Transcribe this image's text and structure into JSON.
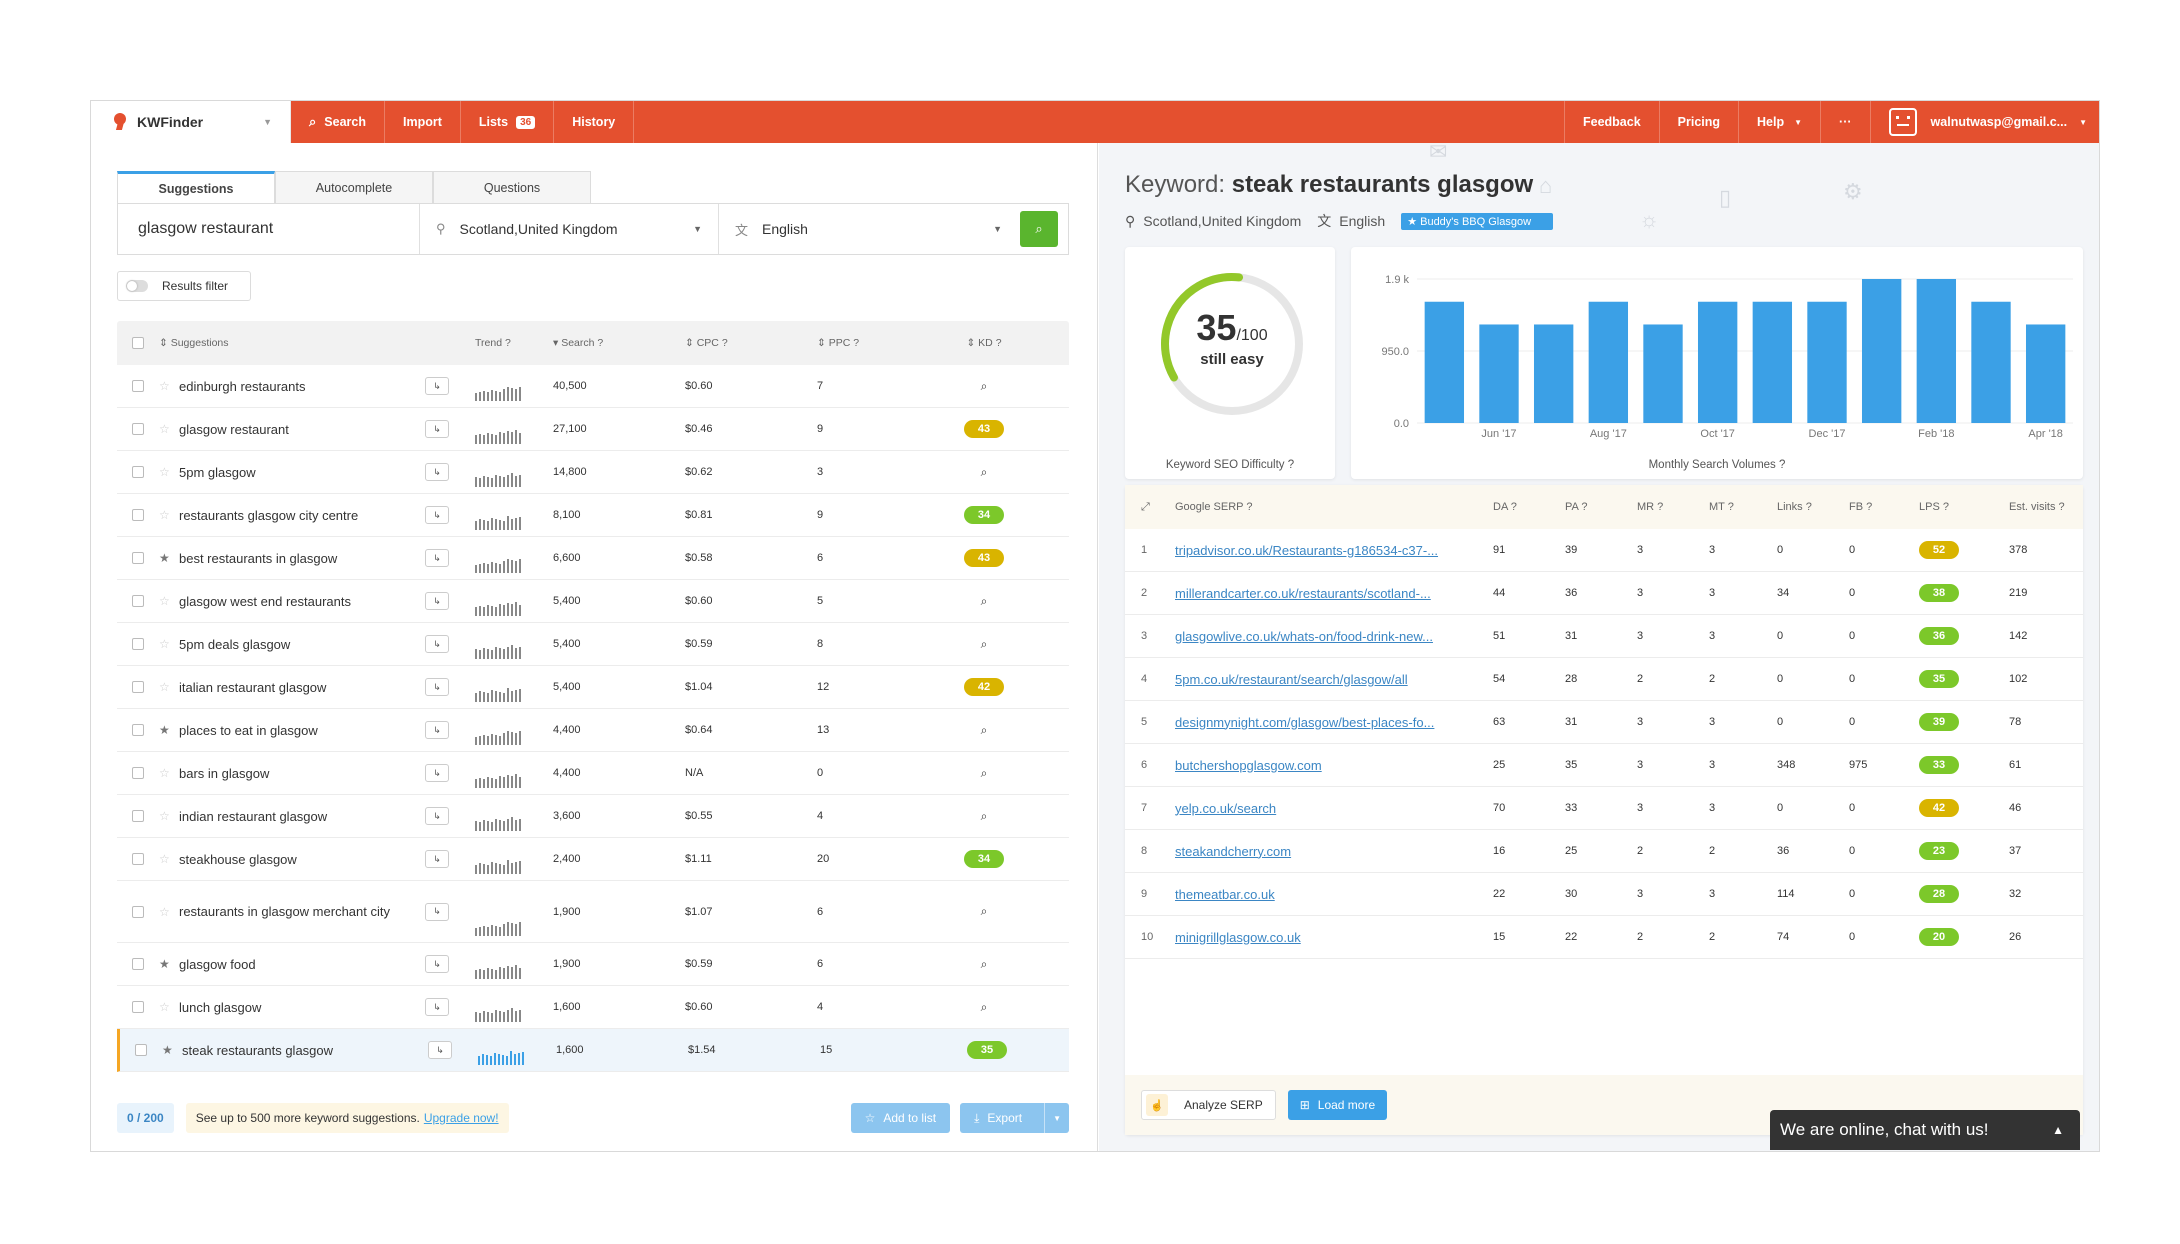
{
  "topbar": {
    "app_name": "KWFinder",
    "nav": [
      {
        "label": "Search",
        "icon": "search-icon"
      },
      {
        "label": "Import"
      },
      {
        "label": "Lists",
        "badge": "36"
      },
      {
        "label": "History"
      }
    ],
    "right_nav": [
      "Feedback",
      "Pricing",
      "Help",
      "···"
    ],
    "user_email": "walnutwasp@gmail.c..."
  },
  "left": {
    "tabs": [
      "Suggestions",
      "Autocomplete",
      "Questions"
    ],
    "search": {
      "query": "glasgow restaurant",
      "location": "Scotland,United Kingdom",
      "language": "English"
    },
    "filter_label": "Results filter",
    "columns": [
      "Suggestions",
      "Trend",
      "Search",
      "CPC",
      "PPC",
      "KD"
    ],
    "rows": [
      {
        "kw": "edinburgh restaurants",
        "star": false,
        "search": "40,500",
        "cpc": "$0.60",
        "ppc": "7",
        "kd": ""
      },
      {
        "kw": "glasgow restaurant",
        "star": false,
        "search": "27,100",
        "cpc": "$0.46",
        "ppc": "9",
        "kd": "43"
      },
      {
        "kw": "5pm glasgow",
        "star": false,
        "search": "14,800",
        "cpc": "$0.62",
        "ppc": "3",
        "kd": ""
      },
      {
        "kw": "restaurants glasgow city centre",
        "star": false,
        "search": "8,100",
        "cpc": "$0.81",
        "ppc": "9",
        "kd": "34"
      },
      {
        "kw": "best restaurants in glasgow",
        "star": true,
        "search": "6,600",
        "cpc": "$0.58",
        "ppc": "6",
        "kd": "43"
      },
      {
        "kw": "glasgow west end restaurants",
        "star": false,
        "search": "5,400",
        "cpc": "$0.60",
        "ppc": "5",
        "kd": ""
      },
      {
        "kw": "5pm deals glasgow",
        "star": false,
        "search": "5,400",
        "cpc": "$0.59",
        "ppc": "8",
        "kd": ""
      },
      {
        "kw": "italian restaurant glasgow",
        "star": false,
        "search": "5,400",
        "cpc": "$1.04",
        "ppc": "12",
        "kd": "42"
      },
      {
        "kw": "places to eat in glasgow",
        "star": true,
        "search": "4,400",
        "cpc": "$0.64",
        "ppc": "13",
        "kd": ""
      },
      {
        "kw": "bars in glasgow",
        "star": false,
        "search": "4,400",
        "cpc": "N/A",
        "ppc": "0",
        "kd": ""
      },
      {
        "kw": "indian restaurant glasgow",
        "star": false,
        "search": "3,600",
        "cpc": "$0.55",
        "ppc": "4",
        "kd": ""
      },
      {
        "kw": "steakhouse glasgow",
        "star": false,
        "search": "2,400",
        "cpc": "$1.11",
        "ppc": "20",
        "kd": "34"
      },
      {
        "kw": "restaurants in glasgow merchant city",
        "star": false,
        "search": "1,900",
        "cpc": "$1.07",
        "ppc": "6",
        "kd": ""
      },
      {
        "kw": "glasgow food",
        "star": true,
        "search": "1,900",
        "cpc": "$0.59",
        "ppc": "6",
        "kd": ""
      },
      {
        "kw": "lunch glasgow",
        "star": false,
        "search": "1,600",
        "cpc": "$0.60",
        "ppc": "4",
        "kd": ""
      },
      {
        "kw": "steak restaurants glasgow",
        "star": true,
        "search": "1,600",
        "cpc": "$1.54",
        "ppc": "15",
        "kd": "35",
        "selected": true
      }
    ],
    "footer": {
      "count": "0 / 200",
      "upgrade_text": "See up to 500 more keyword suggestions.",
      "upgrade_bold": "up to 500 more",
      "upgrade_link": "Upgrade now!",
      "add_to_list": "Add to list",
      "export": "Export"
    }
  },
  "right": {
    "keyword_label": "Keyword:",
    "keyword": "steak restaurants glasgow",
    "location": "Scotland,United Kingdom",
    "language": "English",
    "badge": "Buddy's BBQ Glasgow",
    "difficulty": {
      "score": "35",
      "max": "/100",
      "label": "still easy",
      "caption": "Keyword SEO Difficulty",
      "value": 35
    },
    "volume_caption": "Monthly Search Volumes",
    "serp_columns": [
      "Google SERP",
      "DA",
      "PA",
      "MR",
      "MT",
      "Links",
      "FB",
      "LPS",
      "Est. visits"
    ],
    "serp": [
      {
        "n": "1",
        "url": "tripadvisor.co.uk/Restaurants-g186534-c37-...",
        "da": "91",
        "pa": "39",
        "mr": "3",
        "mt": "3",
        "links": "0",
        "fb": "0",
        "lps": "52",
        "ev": "378"
      },
      {
        "n": "2",
        "url": "millerandcarter.co.uk/restaurants/scotland-...",
        "da": "44",
        "pa": "36",
        "mr": "3",
        "mt": "3",
        "links": "34",
        "fb": "0",
        "lps": "38",
        "ev": "219"
      },
      {
        "n": "3",
        "url": "glasgowlive.co.uk/whats-on/food-drink-new...",
        "da": "51",
        "pa": "31",
        "mr": "3",
        "mt": "3",
        "links": "0",
        "fb": "0",
        "lps": "36",
        "ev": "142"
      },
      {
        "n": "4",
        "url": "5pm.co.uk/restaurant/search/glasgow/all",
        "da": "54",
        "pa": "28",
        "mr": "2",
        "mt": "2",
        "links": "0",
        "fb": "0",
        "lps": "35",
        "ev": "102"
      },
      {
        "n": "5",
        "url": "designmynight.com/glasgow/best-places-fo...",
        "da": "63",
        "pa": "31",
        "mr": "3",
        "mt": "3",
        "links": "0",
        "fb": "0",
        "lps": "39",
        "ev": "78"
      },
      {
        "n": "6",
        "url": "butchershopglasgow.com",
        "da": "25",
        "pa": "35",
        "mr": "3",
        "mt": "3",
        "links": "348",
        "fb": "975",
        "lps": "33",
        "ev": "61"
      },
      {
        "n": "7",
        "url": "yelp.co.uk/search",
        "da": "70",
        "pa": "33",
        "mr": "3",
        "mt": "3",
        "links": "0",
        "fb": "0",
        "lps": "42",
        "ev": "46"
      },
      {
        "n": "8",
        "url": "steakandcherry.com",
        "da": "16",
        "pa": "25",
        "mr": "2",
        "mt": "2",
        "links": "36",
        "fb": "0",
        "lps": "23",
        "ev": "37"
      },
      {
        "n": "9",
        "url": "themeatbar.co.uk",
        "da": "22",
        "pa": "30",
        "mr": "3",
        "mt": "3",
        "links": "114",
        "fb": "0",
        "lps": "28",
        "ev": "32"
      },
      {
        "n": "10",
        "url": "minigrillglasgow.co.uk",
        "da": "15",
        "pa": "22",
        "mr": "2",
        "mt": "2",
        "links": "74",
        "fb": "0",
        "lps": "20",
        "ev": "26"
      }
    ],
    "analyze_label": "Analyze SERP",
    "load_more_label": "Load more"
  },
  "chat": {
    "label": "We are online, chat with us!"
  },
  "colors": {
    "accent": "#e4502f",
    "blue": "#3ba0e6",
    "green": "#5ab52e",
    "kd_yellow": "#d9b400",
    "kd_green": "#7cc82a"
  },
  "chart_data": {
    "type": "bar",
    "title": "",
    "xlabel": "",
    "ylabel": "",
    "categories": [
      "May '17",
      "Jun '17",
      "Jul '17",
      "Aug '17",
      "Sep '17",
      "Oct '17",
      "Nov '17",
      "Dec '17",
      "Jan '18",
      "Feb '18",
      "Mar '18",
      "Apr '18"
    ],
    "tick_labels": [
      "Jun '17",
      "Aug '17",
      "Oct '17",
      "Dec '17",
      "Feb '18",
      "Apr '18"
    ],
    "values": [
      1600,
      1300,
      1300,
      1600,
      1300,
      1600,
      1600,
      1600,
      1900,
      1900,
      1600,
      1300
    ],
    "yticks": [
      "1.9 k",
      "950.0",
      "0.0"
    ],
    "ylim": [
      0,
      1900
    ],
    "grid": true
  }
}
